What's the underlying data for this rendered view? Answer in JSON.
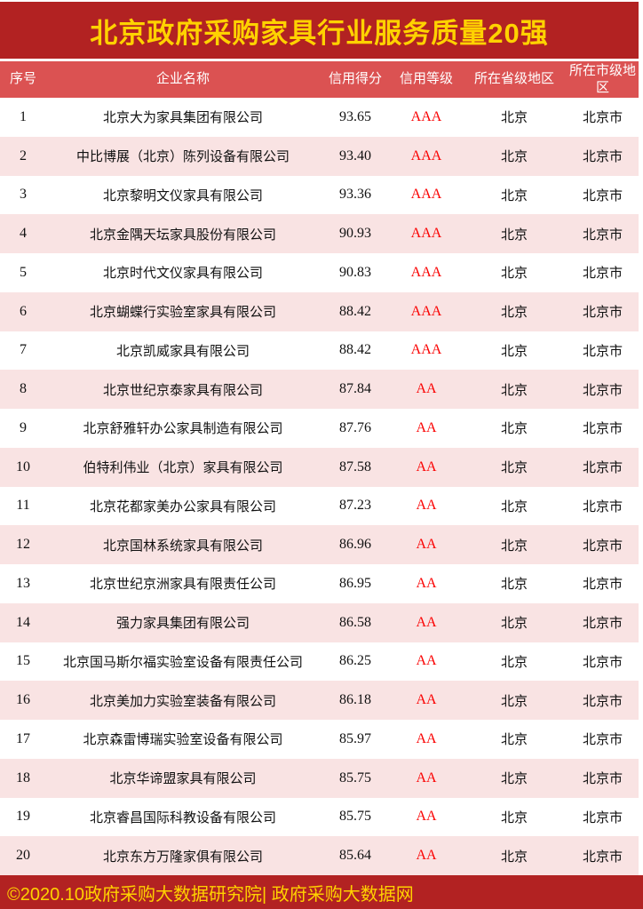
{
  "title": "北京政府采购家具行业服务质量20强",
  "footer": {
    "text": "©2020.10政府采购大数据研究院| 政府采购大数据网"
  },
  "colors": {
    "banner_red": "#B22222",
    "header_red": "#DB5252",
    "row_pink": "#F9E3E3",
    "row_white": "#FFFFFF",
    "title_gold": "#FFD200",
    "rating_red": "#FA0000"
  },
  "table": {
    "columns": [
      "序号",
      "企业名称",
      "信用得分",
      "信用等级",
      "所在省级地区",
      "所在市级地区"
    ],
    "rows": [
      {
        "rank": "1",
        "name": "北京大为家具集团有限公司",
        "score": "93.65",
        "rating": "AAA",
        "province": "北京",
        "city": "北京市"
      },
      {
        "rank": "2",
        "name": "中比博展（北京）陈列设备有限公司",
        "score": "93.40",
        "rating": "AAA",
        "province": "北京",
        "city": "北京市"
      },
      {
        "rank": "3",
        "name": "北京黎明文仪家具有限公司",
        "score": "93.36",
        "rating": "AAA",
        "province": "北京",
        "city": "北京市"
      },
      {
        "rank": "4",
        "name": "北京金隅天坛家具股份有限公司",
        "score": "90.93",
        "rating": "AAA",
        "province": "北京",
        "city": "北京市"
      },
      {
        "rank": "5",
        "name": "北京时代文仪家具有限公司",
        "score": "90.83",
        "rating": "AAA",
        "province": "北京",
        "city": "北京市"
      },
      {
        "rank": "6",
        "name": "北京蝴蝶行实验室家具有限公司",
        "score": "88.42",
        "rating": "AAA",
        "province": "北京",
        "city": "北京市"
      },
      {
        "rank": "7",
        "name": "北京凯威家具有限公司",
        "score": "88.42",
        "rating": "AAA",
        "province": "北京",
        "city": "北京市"
      },
      {
        "rank": "8",
        "name": "北京世纪京泰家具有限公司",
        "score": "87.84",
        "rating": "AA",
        "province": "北京",
        "city": "北京市"
      },
      {
        "rank": "9",
        "name": "北京舒雅轩办公家具制造有限公司",
        "score": "87.76",
        "rating": "AA",
        "province": "北京",
        "city": "北京市"
      },
      {
        "rank": "10",
        "name": "伯特利伟业（北京）家具有限公司",
        "score": "87.58",
        "rating": "AA",
        "province": "北京",
        "city": "北京市"
      },
      {
        "rank": "11",
        "name": "北京花都家美办公家具有限公司",
        "score": "87.23",
        "rating": "AA",
        "province": "北京",
        "city": "北京市"
      },
      {
        "rank": "12",
        "name": "北京国林系统家具有限公司",
        "score": "86.96",
        "rating": "AA",
        "province": "北京",
        "city": "北京市"
      },
      {
        "rank": "13",
        "name": "北京世纪京洲家具有限责任公司",
        "score": "86.95",
        "rating": "AA",
        "province": "北京",
        "city": "北京市"
      },
      {
        "rank": "14",
        "name": "强力家具集团有限公司",
        "score": "86.58",
        "rating": "AA",
        "province": "北京",
        "city": "北京市"
      },
      {
        "rank": "15",
        "name": "北京国马斯尔福实验室设备有限责任公司",
        "score": "86.25",
        "rating": "AA",
        "province": "北京",
        "city": "北京市"
      },
      {
        "rank": "16",
        "name": "北京美加力实验室装备有限公司",
        "score": "86.18",
        "rating": "AA",
        "province": "北京",
        "city": "北京市"
      },
      {
        "rank": "17",
        "name": "北京森雷博瑞实验室设备有限公司",
        "score": "85.97",
        "rating": "AA",
        "province": "北京",
        "city": "北京市"
      },
      {
        "rank": "18",
        "name": "北京华谛盟家具有限公司",
        "score": "85.75",
        "rating": "AA",
        "province": "北京",
        "city": "北京市"
      },
      {
        "rank": "19",
        "name": "北京睿昌国际科教设备有限公司",
        "score": "85.75",
        "rating": "AA",
        "province": "北京",
        "city": "北京市"
      },
      {
        "rank": "20",
        "name": "北京东方万隆家俱有限公司",
        "score": "85.64",
        "rating": "AA",
        "province": "北京",
        "city": "北京市"
      }
    ]
  }
}
